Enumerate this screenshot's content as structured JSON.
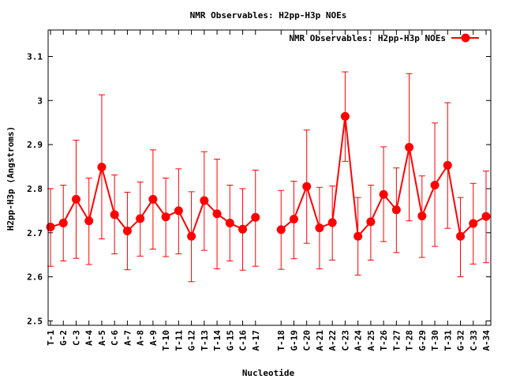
{
  "chart_data": {
    "type": "line",
    "title": "NMR Observables: H2pp-H3p NOEs",
    "xlabel": "Nucleotide",
    "ylabel": "H2pp-H3p (Angstroms)",
    "ylim": [
      2.49,
      3.16
    ],
    "yticks": [
      2.5,
      2.6,
      2.7,
      2.8,
      2.9,
      3.0,
      3.1
    ],
    "ytick_labels": [
      "2.5",
      "2.6",
      "2.7",
      "2.8",
      "2.9",
      "3",
      "3.1"
    ],
    "legend_position": "top-right",
    "grid": false,
    "color": "#ff0000",
    "series": [
      {
        "name": "NMR Observables: H2pp-H3p NOEs",
        "segments": [
          {
            "categories": [
              "T-1",
              "G-2",
              "C-3",
              "A-4",
              "A-5",
              "C-6",
              "A-7",
              "A-8",
              "A-9",
              "T-10",
              "T-11",
              "G-12",
              "T-13",
              "T-14",
              "G-15",
              "C-16",
              "A-17"
            ],
            "values": [
              2.713,
              2.722,
              2.776,
              2.727,
              2.849,
              2.741,
              2.704,
              2.732,
              2.776,
              2.736,
              2.75,
              2.692,
              2.773,
              2.743,
              2.722,
              2.708,
              2.735
            ],
            "err_low": [
              2.624,
              2.636,
              2.642,
              2.628,
              2.686,
              2.652,
              2.616,
              2.647,
              2.663,
              2.646,
              2.652,
              2.589,
              2.66,
              2.618,
              2.636,
              2.615,
              2.624
            ],
            "err_high": [
              2.8,
              2.808,
              2.91,
              2.824,
              3.013,
              2.831,
              2.792,
              2.815,
              2.888,
              2.824,
              2.845,
              2.793,
              2.884,
              2.867,
              2.808,
              2.8,
              2.842
            ]
          },
          {
            "categories": [
              "T-18",
              "G-19",
              "C-20",
              "A-21",
              "A-22",
              "C-23",
              "A-24",
              "A-25",
              "T-26",
              "T-27",
              "T-28",
              "G-29",
              "T-30",
              "T-31",
              "G-32",
              "C-33",
              "A-34"
            ],
            "values": [
              2.707,
              2.731,
              2.805,
              2.711,
              2.723,
              2.964,
              2.692,
              2.725,
              2.787,
              2.752,
              2.894,
              2.738,
              2.808,
              2.853,
              2.692,
              2.721,
              2.737
            ],
            "err_low": [
              2.617,
              2.641,
              2.676,
              2.618,
              2.638,
              2.862,
              2.604,
              2.638,
              2.68,
              2.655,
              2.727,
              2.644,
              2.669,
              2.71,
              2.6,
              2.629,
              2.632
            ],
            "err_high": [
              2.796,
              2.817,
              2.933,
              2.803,
              2.806,
              3.065,
              2.78,
              2.808,
              2.895,
              2.847,
              3.061,
              2.829,
              2.949,
              2.995,
              2.78,
              2.812,
              2.84
            ]
          }
        ]
      }
    ]
  }
}
